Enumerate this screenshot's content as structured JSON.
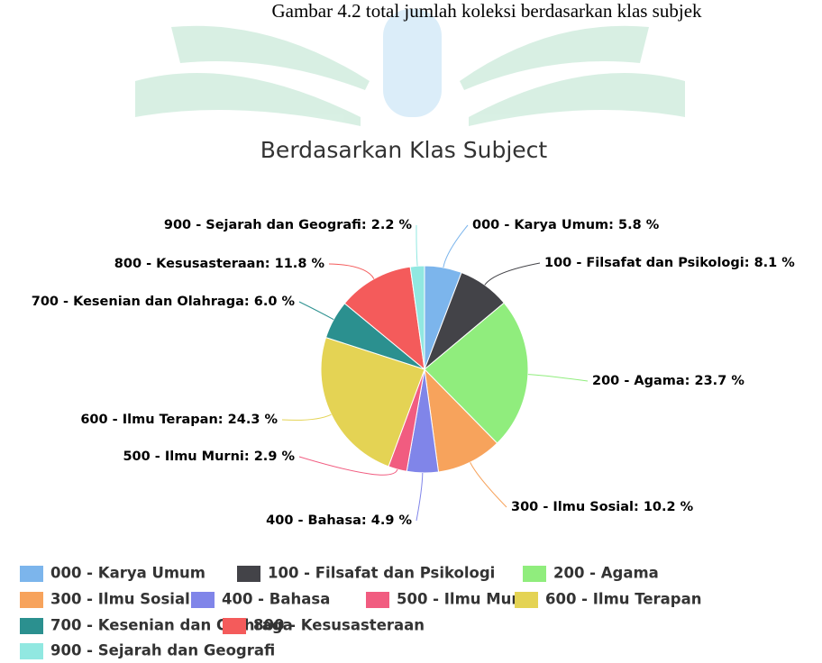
{
  "caption": "Gambar 4.2  total jumlah koleksi berdasarkan klas subjek",
  "chart_data": {
    "type": "pie",
    "title": "Berdasarkan Klas Subject",
    "categories": [
      "000 - Karya Umum",
      "100 - Filsafat dan Psikologi",
      "200 - Agama",
      "300 - Ilmu Sosial",
      "400 - Bahasa",
      "500 - Ilmu Murni",
      "600 - Ilmu Terapan",
      "700 - Kesenian dan Olahraga",
      "800 - Kesusasteraan",
      "900 - Sejarah dan Geografi"
    ],
    "values": [
      5.8,
      8.1,
      23.7,
      10.2,
      4.9,
      2.9,
      24.3,
      6.0,
      11.8,
      2.2
    ],
    "value_labels": [
      "000 - Karya Umum: 5.8 %",
      "100 - Filsafat dan Psikologi: 8.1 %",
      "200 - Agama: 23.7 %",
      "300 - Ilmu Sosial: 10.2 %",
      "400 - Bahasa: 4.9 %",
      "500 - Ilmu Murni: 2.9 %",
      "600 - Ilmu Terapan: 24.3 %",
      "700 - Kesenian dan Olahraga: 6.0 %",
      "800 - Kesusasteraan: 11.8 %",
      "900 - Sejarah dan Geografi: 2.2 %"
    ],
    "colors": [
      "#7cb5ec",
      "#434348",
      "#90ed7d",
      "#f7a35c",
      "#8085e9",
      "#f15c80",
      "#e4d354",
      "#2b908f",
      "#f45b5b",
      "#91e8e1"
    ],
    "legend": "bottom"
  }
}
